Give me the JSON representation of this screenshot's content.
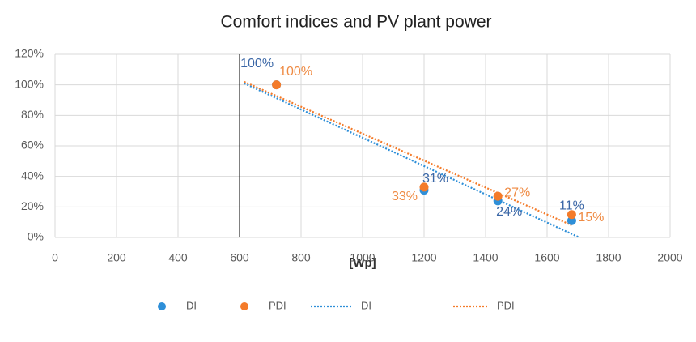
{
  "chart_data": {
    "type": "scatter",
    "title": "Comfort  indices and PV plant power",
    "x_label": "[Wp]",
    "xlim": [
      0,
      2000
    ],
    "xticks": [
      0,
      200,
      400,
      600,
      800,
      1000,
      1200,
      1400,
      1600,
      1800,
      2000
    ],
    "ylim": [
      0,
      120
    ],
    "yticks": [
      {
        "value": 0,
        "label": "0%"
      },
      {
        "value": 20,
        "label": "20%"
      },
      {
        "value": 40,
        "label": "40%"
      },
      {
        "value": 60,
        "label": "60%"
      },
      {
        "value": 80,
        "label": "80%"
      },
      {
        "value": 100,
        "label": "100%"
      },
      {
        "value": 120,
        "label": "120%"
      }
    ],
    "grid": true,
    "vline": 600,
    "legend": "bottom",
    "series": [
      {
        "name": "DI",
        "color": "#2e8fd8",
        "label_color": "#3a66a6",
        "x": [
          720,
          1200,
          1440,
          1680
        ],
        "values": [
          100,
          31,
          24,
          11
        ],
        "value_labels": [
          "100%",
          "31%",
          "24%",
          "11%"
        ]
      },
      {
        "name": "PDI",
        "color": "#f47b2a",
        "label_color": "#ef8a42",
        "x": [
          720,
          1200,
          1440,
          1680
        ],
        "values": [
          100,
          33,
          27,
          15
        ],
        "value_labels": [
          "100%",
          "33%",
          "27%",
          "15%"
        ]
      }
    ],
    "trendlines": [
      {
        "name": "DI",
        "color": "#2e8fd8",
        "x": [
          615,
          1705
        ],
        "values": [
          101,
          0
        ]
      },
      {
        "name": "PDI",
        "color": "#f47b2a",
        "x": [
          615,
          1680
        ],
        "values": [
          102,
          8
        ]
      }
    ]
  }
}
